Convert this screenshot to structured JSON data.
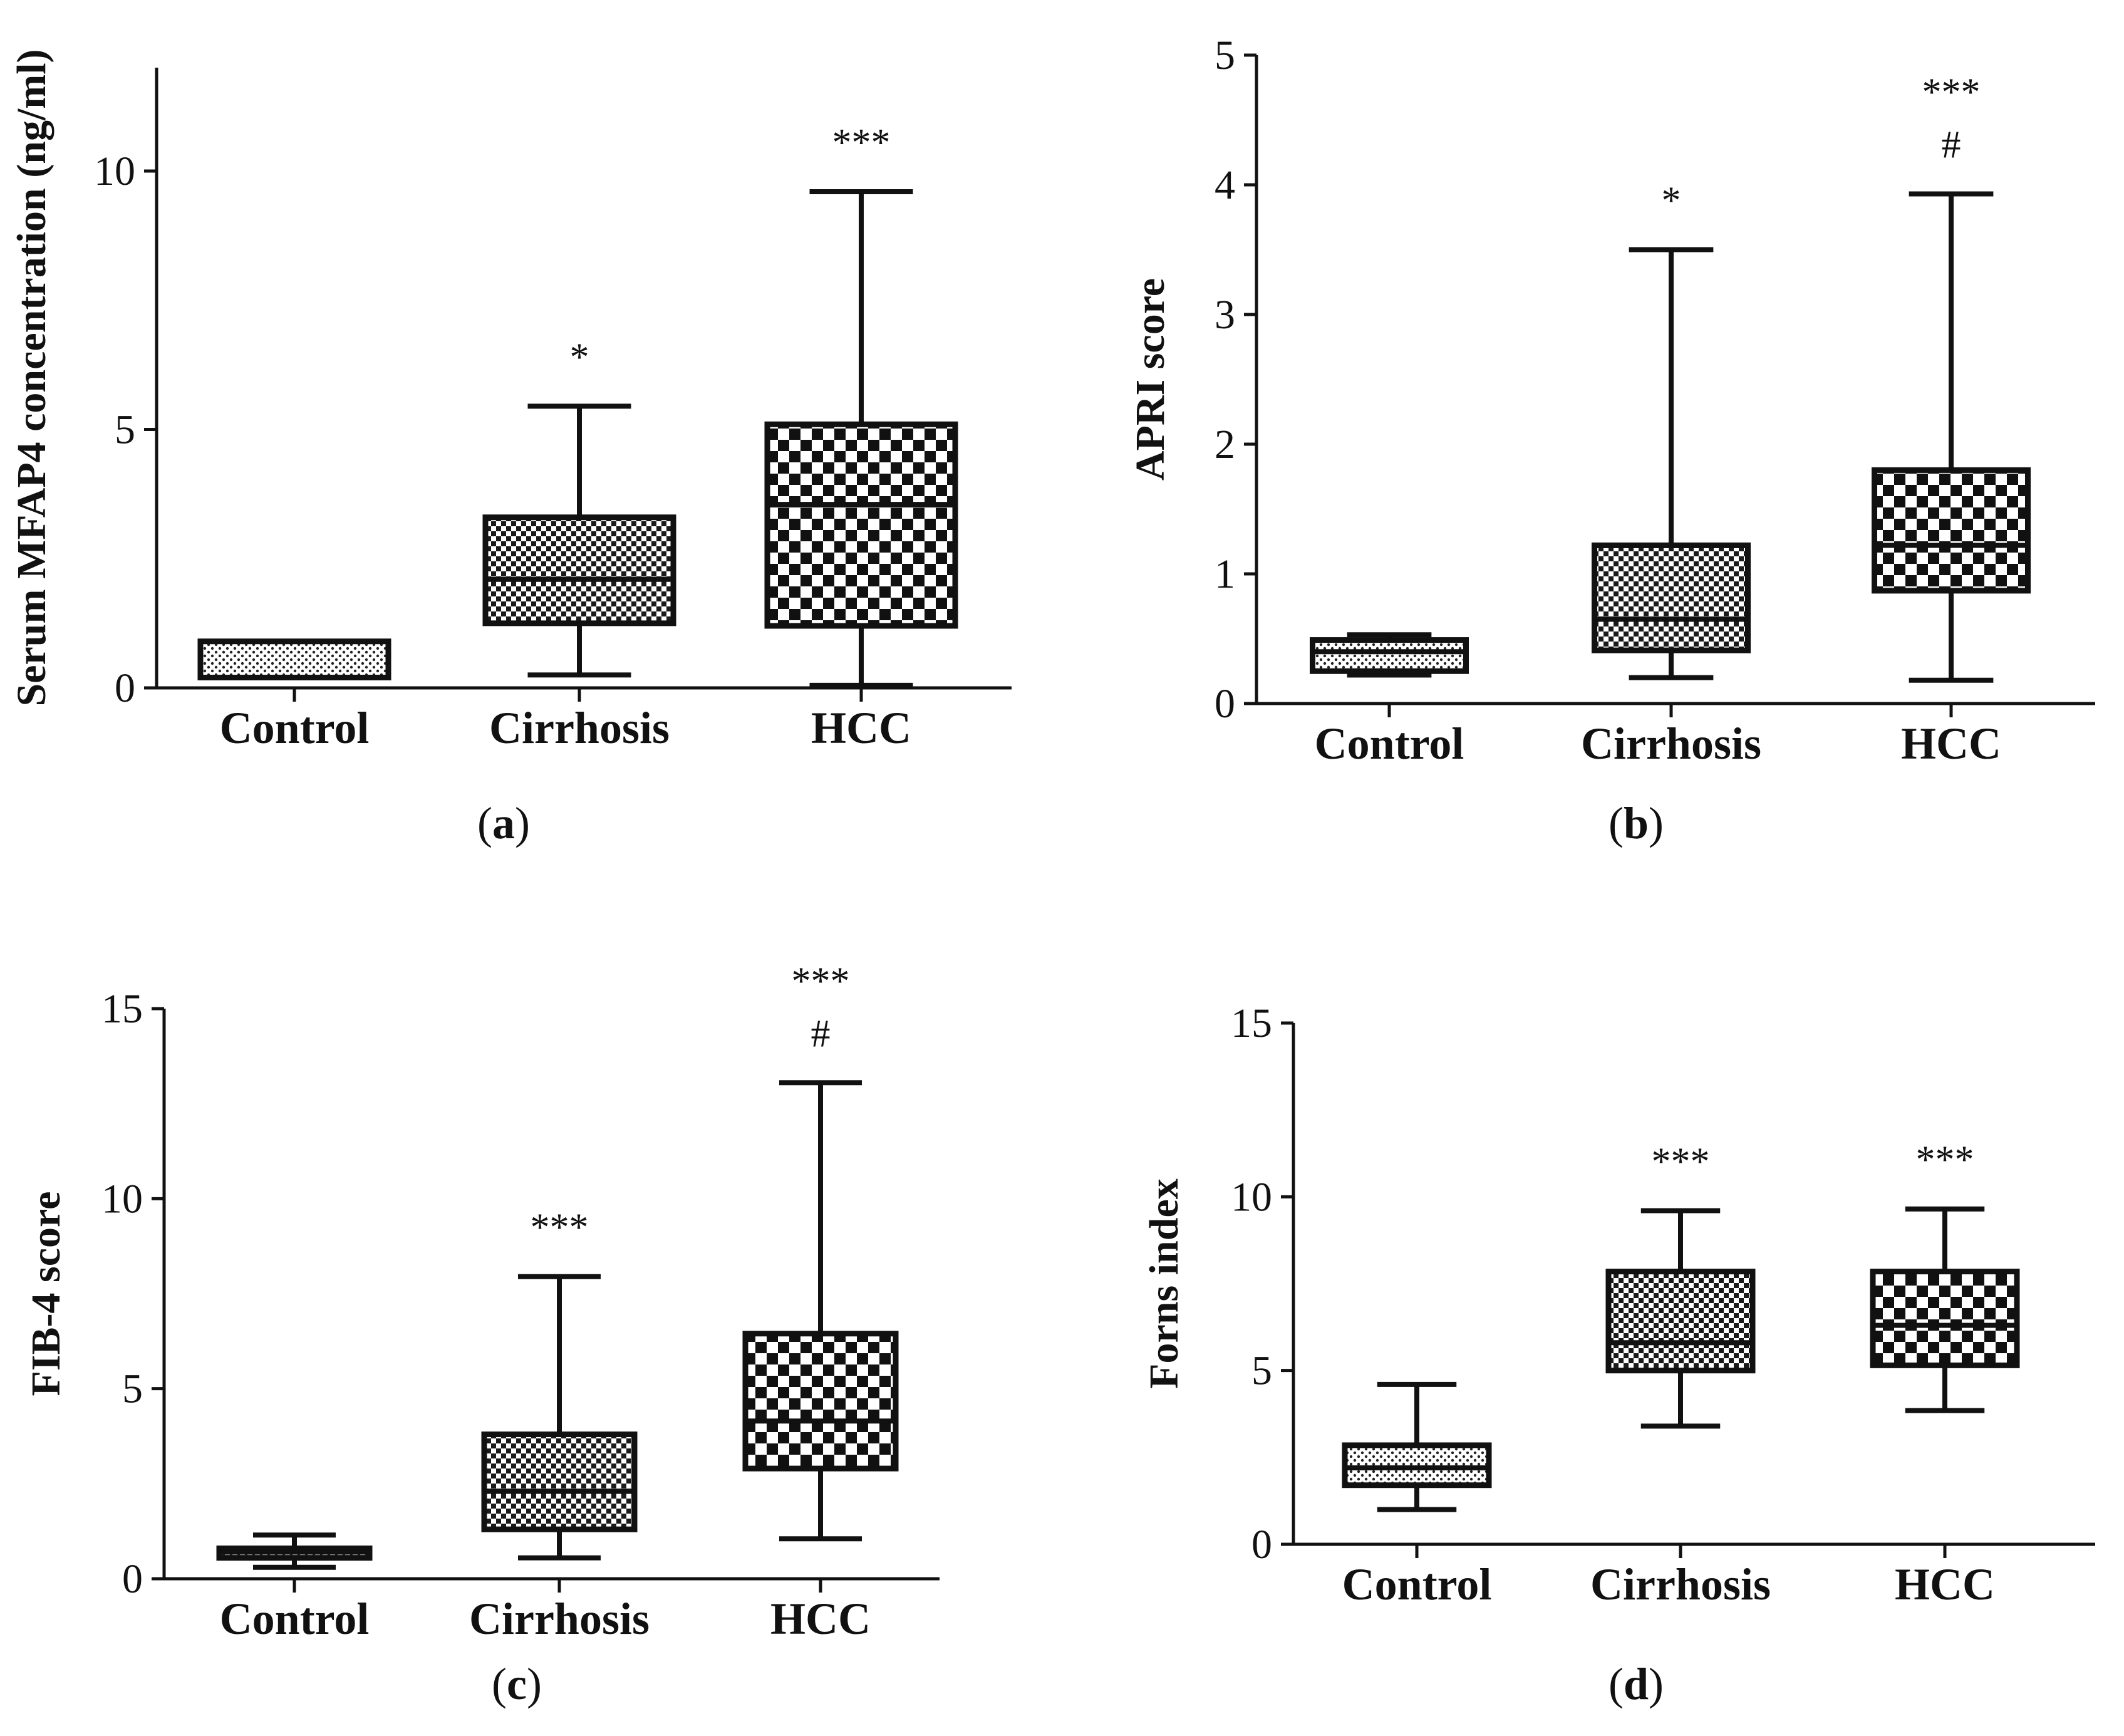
{
  "figure": {
    "type": "box-plot-panels",
    "panel_count": 4
  },
  "chart_data": [
    {
      "type": "box",
      "panel_label": "a",
      "ylabel": "Serum MFAP4 concentration (ng/ml)",
      "ylim": [
        0,
        12
      ],
      "yticks": [
        0,
        5,
        10
      ],
      "categories": [
        "Control",
        "Cirrhosis",
        "HCC"
      ],
      "boxes": [
        {
          "category": "Control",
          "min": 0.2,
          "q1": 0.2,
          "median": 0.2,
          "q3": 0.9,
          "max": 0.9,
          "pattern": "dots",
          "annotations": []
        },
        {
          "category": "Cirrhosis",
          "min": 0.25,
          "q1": 1.25,
          "median": 2.1,
          "q3": 3.3,
          "max": 5.45,
          "pattern": "medium-check",
          "annotations": [
            "*"
          ]
        },
        {
          "category": "HCC",
          "min": 0.05,
          "q1": 1.2,
          "median": 3.55,
          "q3": 5.1,
          "max": 9.6,
          "pattern": "large-check",
          "annotations": [
            "***"
          ]
        }
      ]
    },
    {
      "type": "box",
      "panel_label": "b",
      "ylabel": "APRI score",
      "ylim": [
        0,
        5
      ],
      "yticks": [
        0,
        1,
        2,
        3,
        4,
        5
      ],
      "categories": [
        "Control",
        "Cirrhosis",
        "HCC"
      ],
      "boxes": [
        {
          "category": "Control",
          "min": 0.22,
          "q1": 0.25,
          "median": 0.4,
          "q3": 0.49,
          "max": 0.53,
          "pattern": "dots",
          "annotations": []
        },
        {
          "category": "Cirrhosis",
          "min": 0.2,
          "q1": 0.41,
          "median": 0.65,
          "q3": 1.22,
          "max": 3.5,
          "pattern": "medium-check",
          "annotations": [
            "*"
          ]
        },
        {
          "category": "HCC",
          "min": 0.18,
          "q1": 0.87,
          "median": 1.22,
          "q3": 1.8,
          "max": 3.93,
          "pattern": "large-check",
          "annotations": [
            "***",
            "#"
          ]
        }
      ]
    },
    {
      "type": "box",
      "panel_label": "c",
      "ylabel": "FIB-4 score",
      "ylim": [
        0,
        15
      ],
      "yticks": [
        0,
        5,
        10,
        15
      ],
      "categories": [
        "Control",
        "Cirrhosis",
        "HCC"
      ],
      "boxes": [
        {
          "category": "Control",
          "min": 0.3,
          "q1": 0.55,
          "median": 0.7,
          "q3": 0.8,
          "max": 1.15,
          "pattern": "dots",
          "annotations": []
        },
        {
          "category": "Cirrhosis",
          "min": 0.55,
          "q1": 1.3,
          "median": 2.3,
          "q3": 3.8,
          "max": 7.95,
          "pattern": "medium-check",
          "annotations": [
            "***"
          ]
        },
        {
          "category": "HCC",
          "min": 1.05,
          "q1": 2.9,
          "median": 4.15,
          "q3": 6.45,
          "max": 13.05,
          "pattern": "large-check",
          "annotations": [
            "***",
            "#"
          ]
        }
      ]
    },
    {
      "type": "box",
      "panel_label": "d",
      "ylabel": "Forns index",
      "ylim": [
        0,
        15
      ],
      "yticks": [
        0,
        5,
        10,
        15
      ],
      "categories": [
        "Control",
        "Cirrhosis",
        "HCC"
      ],
      "boxes": [
        {
          "category": "Control",
          "min": 1.0,
          "q1": 1.7,
          "median": 2.2,
          "q3": 2.85,
          "max": 4.6,
          "pattern": "dots",
          "annotations": []
        },
        {
          "category": "Cirrhosis",
          "min": 3.4,
          "q1": 5.0,
          "median": 5.8,
          "q3": 7.85,
          "max": 9.6,
          "pattern": "medium-check",
          "annotations": [
            "***"
          ]
        },
        {
          "category": "HCC",
          "min": 3.85,
          "q1": 5.15,
          "median": 6.3,
          "q3": 7.85,
          "max": 9.65,
          "pattern": "large-check",
          "annotations": [
            "***"
          ]
        }
      ]
    }
  ]
}
